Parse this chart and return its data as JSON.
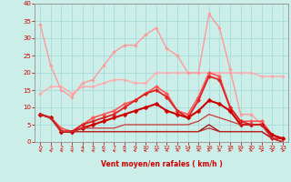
{
  "xlabel": "Vent moyen/en rafales ( km/h )",
  "background_color": "#cceee8",
  "grid_color": "#aadddd",
  "xlim": [
    -0.5,
    23.5
  ],
  "ylim": [
    0,
    40
  ],
  "yticks": [
    0,
    5,
    10,
    15,
    20,
    25,
    30,
    35,
    40
  ],
  "xticks": [
    0,
    1,
    2,
    3,
    4,
    5,
    6,
    7,
    8,
    9,
    10,
    11,
    12,
    13,
    14,
    15,
    16,
    17,
    18,
    19,
    20,
    21,
    22,
    23
  ],
  "series": [
    {
      "x": [
        0,
        1,
        2,
        3,
        4,
        5,
        6,
        7,
        8,
        9,
        10,
        11,
        12,
        13,
        14,
        15,
        16,
        17,
        18,
        19,
        20,
        21,
        22,
        23
      ],
      "y": [
        14,
        16,
        16,
        14,
        16,
        16,
        17,
        18,
        18,
        17,
        17,
        20,
        20,
        20,
        20,
        20,
        20,
        20,
        20,
        20,
        20,
        19,
        19,
        19
      ],
      "color": "#ffaaaa",
      "lw": 1.0,
      "marker": "D",
      "ms": 1.8
    },
    {
      "x": [
        0,
        1,
        2,
        3,
        4,
        5,
        6,
        7,
        8,
        9,
        10,
        11,
        12,
        13,
        14,
        15,
        16,
        17,
        18,
        19,
        20,
        21,
        22,
        23
      ],
      "y": [
        34,
        22,
        15,
        13,
        17,
        18,
        22,
        26,
        28,
        28,
        31,
        33,
        27,
        25,
        20,
        20,
        37,
        33,
        21,
        8,
        8,
        5,
        2,
        1
      ],
      "color": "#ff9999",
      "lw": 1.0,
      "marker": "D",
      "ms": 1.8
    },
    {
      "x": [
        0,
        1,
        2,
        3,
        4,
        5,
        6,
        7,
        8,
        9,
        10,
        11,
        12,
        13,
        14,
        15,
        16,
        17,
        18,
        19,
        20,
        21,
        22,
        23
      ],
      "y": [
        8,
        7,
        4,
        3,
        5,
        7,
        8,
        9,
        11,
        12,
        14,
        16,
        14,
        9,
        8,
        13,
        20,
        19,
        10,
        6,
        6,
        6,
        2,
        1
      ],
      "color": "#ff5555",
      "lw": 1.2,
      "marker": "D",
      "ms": 2.2
    },
    {
      "x": [
        0,
        1,
        2,
        3,
        4,
        5,
        6,
        7,
        8,
        9,
        10,
        11,
        12,
        13,
        14,
        15,
        16,
        17,
        18,
        19,
        20,
        21,
        22,
        23
      ],
      "y": [
        8,
        7,
        3,
        3,
        5,
        6,
        7,
        8,
        10,
        12,
        14,
        15,
        13,
        9,
        7,
        12,
        19,
        18,
        10,
        6,
        5,
        5,
        1,
        1
      ],
      "color": "#dd2222",
      "lw": 1.3,
      "marker": "D",
      "ms": 2.2
    },
    {
      "x": [
        0,
        1,
        2,
        3,
        4,
        5,
        6,
        7,
        8,
        9,
        10,
        11,
        12,
        13,
        14,
        15,
        16,
        17,
        18,
        19,
        20,
        21,
        22,
        23
      ],
      "y": [
        8,
        7,
        3,
        3,
        4,
        5,
        6,
        7,
        8,
        9,
        10,
        11,
        9,
        8,
        7,
        9,
        12,
        11,
        9,
        5,
        5,
        5,
        2,
        1
      ],
      "color": "#cc0000",
      "lw": 1.5,
      "marker": "D",
      "ms": 2.5
    },
    {
      "x": [
        0,
        1,
        2,
        3,
        4,
        5,
        6,
        7,
        8,
        9,
        10,
        11,
        12,
        13,
        14,
        15,
        16,
        17,
        18,
        19,
        20,
        21,
        22,
        23
      ],
      "y": [
        8,
        7,
        3,
        3,
        3,
        3,
        3,
        3,
        3,
        3,
        3,
        3,
        3,
        3,
        3,
        3,
        5,
        3,
        3,
        3,
        3,
        3,
        1,
        0
      ],
      "color": "#990000",
      "lw": 0.9,
      "marker": null,
      "ms": 1.5
    },
    {
      "x": [
        0,
        1,
        2,
        3,
        4,
        5,
        6,
        7,
        8,
        9,
        10,
        11,
        12,
        13,
        14,
        15,
        16,
        17,
        18,
        19,
        20,
        21,
        22,
        23
      ],
      "y": [
        8,
        7,
        3,
        3,
        3,
        3,
        3,
        3,
        3,
        3,
        3,
        3,
        3,
        3,
        3,
        3,
        4,
        3,
        3,
        3,
        3,
        3,
        1,
        0
      ],
      "color": "#bb2222",
      "lw": 0.9,
      "marker": null,
      "ms": 1.5
    },
    {
      "x": [
        0,
        1,
        2,
        3,
        4,
        5,
        6,
        7,
        8,
        9,
        10,
        11,
        12,
        13,
        14,
        15,
        16,
        17,
        18,
        19,
        20,
        21,
        22,
        23
      ],
      "y": [
        8,
        7,
        3,
        3,
        4,
        4,
        4,
        4,
        5,
        5,
        5,
        5,
        5,
        5,
        5,
        6,
        8,
        7,
        6,
        5,
        5,
        5,
        1,
        0
      ],
      "color": "#cc3333",
      "lw": 0.9,
      "marker": null,
      "ms": 1.5
    }
  ],
  "wind_arrows": {
    "angles_deg": [
      225,
      225,
      225,
      225,
      225,
      225,
      225,
      225,
      225,
      270,
      270,
      315,
      315,
      315,
      315,
      315,
      45,
      45,
      45,
      45,
      45,
      90,
      90,
      90
    ]
  }
}
